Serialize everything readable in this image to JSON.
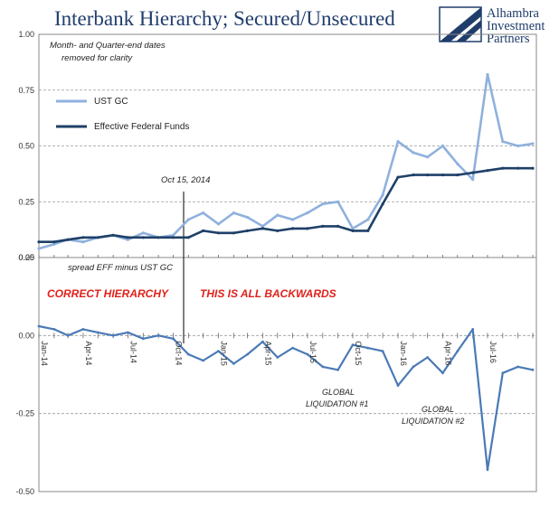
{
  "title": "Interbank Hierarchy; Secured/Unsecured",
  "brand": {
    "line1": "Alhambra",
    "line2": "Investment",
    "line3": "Partners",
    "logo_icon": "alhambra-logo-icon"
  },
  "colors": {
    "title": "#1f3d6b",
    "ust_gc": "#8fb1dd",
    "eff": "#1f4068",
    "spread": "#4a7ab6",
    "grid": "#9a9a9a",
    "red": "#e0211b"
  },
  "chart_data": [
    {
      "type": "line",
      "note": [
        "Month- and Quarter-end dates",
        "removed for clarity"
      ],
      "ylim": [
        0,
        1.0
      ],
      "yticks": [
        "1.00",
        "0.75",
        "0.50",
        "0.25",
        "0.00"
      ],
      "grid": true,
      "legend_position": "top-left",
      "annotation": "Oct 15, 2014",
      "series": [
        {
          "name": "UST GC",
          "x": [
            "2014-01",
            "2014-02",
            "2014-03",
            "2014-04",
            "2014-05",
            "2014-06",
            "2014-07",
            "2014-08",
            "2014-09",
            "2014-10",
            "2014-11",
            "2014-12",
            "2015-01",
            "2015-02",
            "2015-03",
            "2015-04",
            "2015-05",
            "2015-06",
            "2015-07",
            "2015-08",
            "2015-09",
            "2015-10",
            "2015-11",
            "2015-12",
            "2016-01",
            "2016-02",
            "2016-03",
            "2016-04",
            "2016-05",
            "2016-06",
            "2016-07",
            "2016-08",
            "2016-09",
            "2016-10"
          ],
          "values": [
            0.04,
            0.06,
            0.08,
            0.07,
            0.09,
            0.1,
            0.08,
            0.11,
            0.09,
            0.1,
            0.17,
            0.2,
            0.15,
            0.2,
            0.18,
            0.14,
            0.19,
            0.17,
            0.2,
            0.24,
            0.25,
            0.13,
            0.17,
            0.28,
            0.52,
            0.47,
            0.45,
            0.5,
            0.42,
            0.35,
            0.82,
            0.52,
            0.5,
            0.51
          ]
        },
        {
          "name": "Effective Federal Funds",
          "x": [
            "2014-01",
            "2014-02",
            "2014-03",
            "2014-04",
            "2014-05",
            "2014-06",
            "2014-07",
            "2014-08",
            "2014-09",
            "2014-10",
            "2014-11",
            "2014-12",
            "2015-01",
            "2015-02",
            "2015-03",
            "2015-04",
            "2015-05",
            "2015-06",
            "2015-07",
            "2015-08",
            "2015-09",
            "2015-10",
            "2015-11",
            "2015-12",
            "2016-01",
            "2016-02",
            "2016-03",
            "2016-04",
            "2016-05",
            "2016-06",
            "2016-07",
            "2016-08",
            "2016-09",
            "2016-10"
          ],
          "values": [
            0.07,
            0.07,
            0.08,
            0.09,
            0.09,
            0.1,
            0.09,
            0.09,
            0.09,
            0.09,
            0.09,
            0.12,
            0.11,
            0.11,
            0.12,
            0.13,
            0.12,
            0.13,
            0.13,
            0.14,
            0.14,
            0.12,
            0.12,
            0.24,
            0.36,
            0.37,
            0.37,
            0.37,
            0.37,
            0.38,
            0.39,
            0.4,
            0.4,
            0.4
          ]
        }
      ]
    },
    {
      "type": "line",
      "note": "spread EFF minus UST GC",
      "ylim": [
        -0.5,
        0.25
      ],
      "yticks": [
        "0.25",
        "0.00",
        "-0.25",
        "-0.50"
      ],
      "grid": true,
      "annotations": [
        "CORRECT HIERARCHY",
        "THIS IS ALL BACKWARDS",
        "GLOBAL",
        "LIQUIDATION #1",
        "GLOBAL",
        "LIQUIDATION #2"
      ],
      "categories": [
        "Jan-14",
        "Apr-14",
        "Jul-14",
        "Oct-14",
        "Jan-15",
        "Apr-15",
        "Jul-15",
        "Oct-15",
        "Jan-16",
        "Apr-16",
        "Jul-16"
      ],
      "series": [
        {
          "x": [
            "2014-01",
            "2014-02",
            "2014-03",
            "2014-04",
            "2014-05",
            "2014-06",
            "2014-07",
            "2014-08",
            "2014-09",
            "2014-10",
            "2014-11",
            "2014-12",
            "2015-01",
            "2015-02",
            "2015-03",
            "2015-04",
            "2015-05",
            "2015-06",
            "2015-07",
            "2015-08",
            "2015-09",
            "2015-10",
            "2015-11",
            "2015-12",
            "2016-01",
            "2016-02",
            "2016-03",
            "2016-04",
            "2016-05",
            "2016-06",
            "2016-07",
            "2016-08",
            "2016-09",
            "2016-10"
          ],
          "values": [
            0.03,
            0.02,
            0.0,
            0.02,
            0.01,
            0.0,
            0.01,
            -0.01,
            0.0,
            -0.01,
            -0.06,
            -0.08,
            -0.05,
            -0.09,
            -0.06,
            -0.02,
            -0.07,
            -0.04,
            -0.06,
            -0.1,
            -0.11,
            -0.03,
            -0.04,
            -0.05,
            -0.16,
            -0.1,
            -0.07,
            -0.12,
            -0.05,
            0.02,
            -0.43,
            -0.12,
            -0.1,
            -0.11
          ]
        }
      ]
    }
  ]
}
